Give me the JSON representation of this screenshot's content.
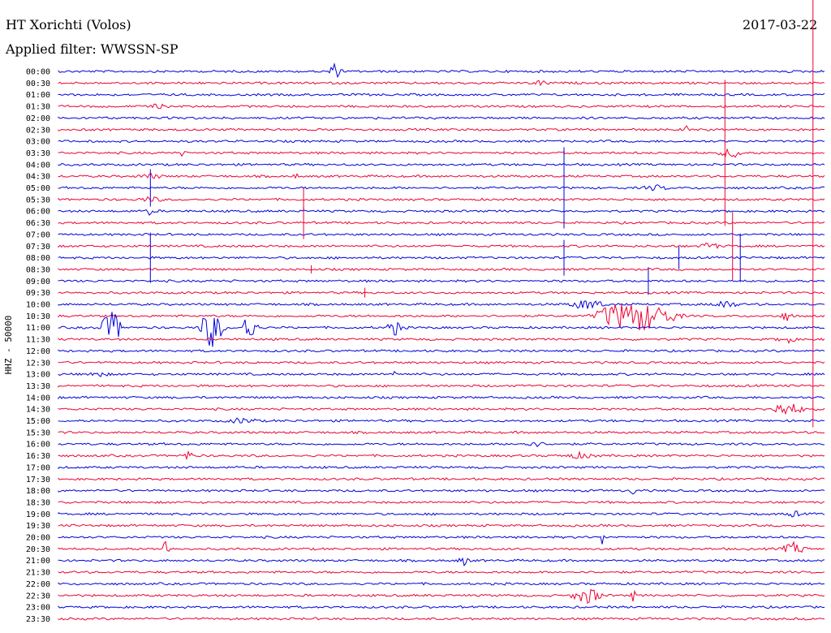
{
  "chart_data": {
    "type": "line",
    "title": "HT Xorichti (Volos)",
    "subtitle": "Applied filter: WWSSN-SP",
    "date": "2017-03-22",
    "ylabel": "HHZ - 50000",
    "row_labels": [
      "00:00",
      "00:30",
      "01:00",
      "01:30",
      "02:00",
      "02:30",
      "03:00",
      "03:30",
      "04:00",
      "04:30",
      "05:00",
      "05:30",
      "06:00",
      "06:30",
      "07:00",
      "07:30",
      "08:00",
      "08:30",
      "09:00",
      "09:30",
      "10:00",
      "10:30",
      "11:00",
      "11:30",
      "12:00",
      "12:30",
      "13:00",
      "13:30",
      "14:00",
      "14:30",
      "15:00",
      "15:30",
      "16:00",
      "16:30",
      "17:00",
      "17:30",
      "18:00",
      "18:30",
      "19:00",
      "19:30",
      "20:00",
      "20:30",
      "21:00",
      "21:30",
      "22:00",
      "22:30",
      "23:00",
      "23:30"
    ],
    "series_colors": [
      "#0000dd",
      "#ee0033"
    ],
    "grid": false,
    "x_range_fraction": [
      0,
      1
    ],
    "events": [
      {
        "row": 0,
        "pos": 0.36,
        "amp": 9,
        "dur": 0.012
      },
      {
        "row": 1,
        "pos": 0.63,
        "amp": 3,
        "dur": 0.015
      },
      {
        "row": 3,
        "pos": 0.13,
        "amp": 2,
        "dur": 0.02
      },
      {
        "row": 4,
        "pos": 0.27,
        "amp": 6,
        "dur": 0.003
      },
      {
        "row": 5,
        "pos": 0.82,
        "amp": 6,
        "dur": 0.004
      },
      {
        "row": 7,
        "pos": 0.16,
        "amp": 4,
        "dur": 0.006
      },
      {
        "row": 7,
        "pos": 0.88,
        "amp": 6,
        "dur": 0.02
      },
      {
        "row": 9,
        "pos": 0.12,
        "amp": 3,
        "dur": 0.02
      },
      {
        "row": 9,
        "pos": 0.31,
        "amp": 3,
        "dur": 0.004
      },
      {
        "row": 10,
        "pos": 0.78,
        "amp": 3,
        "dur": 0.02
      },
      {
        "row": 11,
        "pos": 0.12,
        "amp": 3,
        "dur": 0.02
      },
      {
        "row": 12,
        "pos": 0.12,
        "amp": 8,
        "dur": 0.006
      },
      {
        "row": 15,
        "pos": 0.85,
        "amp": 5,
        "dur": 0.015
      },
      {
        "row": 20,
        "pos": 0.69,
        "amp": 6,
        "dur": 0.03
      },
      {
        "row": 20,
        "pos": 0.87,
        "amp": 5,
        "dur": 0.02
      },
      {
        "row": 21,
        "pos": 0.72,
        "amp": 8,
        "dur": 0.03
      },
      {
        "row": 21,
        "pos": 0.76,
        "amp": 18,
        "dur": 0.06
      },
      {
        "row": 21,
        "pos": 0.95,
        "amp": 6,
        "dur": 0.01
      },
      {
        "row": 22,
        "pos": 0.07,
        "amp": 20,
        "dur": 0.02
      },
      {
        "row": 22,
        "pos": 0.2,
        "amp": 26,
        "dur": 0.02
      },
      {
        "row": 22,
        "pos": 0.25,
        "amp": 22,
        "dur": 0.012
      },
      {
        "row": 22,
        "pos": 0.44,
        "amp": 9,
        "dur": 0.015
      },
      {
        "row": 23,
        "pos": 0.95,
        "amp": 5,
        "dur": 0.015
      },
      {
        "row": 26,
        "pos": 0.05,
        "amp": 3,
        "dur": 0.02
      },
      {
        "row": 26,
        "pos": 0.44,
        "amp": 8,
        "dur": 0.004
      },
      {
        "row": 29,
        "pos": 0.95,
        "amp": 8,
        "dur": 0.03
      },
      {
        "row": 30,
        "pos": 0.24,
        "amp": 3,
        "dur": 0.025
      },
      {
        "row": 32,
        "pos": 0.62,
        "amp": 3,
        "dur": 0.02
      },
      {
        "row": 33,
        "pos": 0.17,
        "amp": 9,
        "dur": 0.006
      },
      {
        "row": 33,
        "pos": 0.68,
        "amp": 3,
        "dur": 0.03
      },
      {
        "row": 36,
        "pos": 0.75,
        "amp": 6,
        "dur": 0.004
      },
      {
        "row": 38,
        "pos": 0.96,
        "amp": 4,
        "dur": 0.01
      },
      {
        "row": 40,
        "pos": 0.71,
        "amp": 9,
        "dur": 0.004
      },
      {
        "row": 41,
        "pos": 0.14,
        "amp": 15,
        "dur": 0.006
      },
      {
        "row": 41,
        "pos": 0.96,
        "amp": 7,
        "dur": 0.02
      },
      {
        "row": 42,
        "pos": 0.53,
        "amp": 5,
        "dur": 0.01
      },
      {
        "row": 45,
        "pos": 0.69,
        "amp": 10,
        "dur": 0.025
      },
      {
        "row": 45,
        "pos": 0.75,
        "amp": 9,
        "dur": 0.004
      }
    ],
    "spikes": [
      {
        "row": 10,
        "pos": 0.12,
        "h": 46
      },
      {
        "row": 16,
        "pos": 0.12,
        "h": 62
      },
      {
        "row": 11,
        "pos": 0.32,
        "h": 30
      },
      {
        "row": 13,
        "pos": 0.32,
        "h": 40
      },
      {
        "row": 10,
        "pos": 0.66,
        "h": 100
      },
      {
        "row": 16,
        "pos": 0.66,
        "h": 44
      },
      {
        "row": 7,
        "pos": 0.87,
        "h": 180
      },
      {
        "row": 15,
        "pos": 0.88,
        "h": 84
      },
      {
        "row": 16,
        "pos": 0.89,
        "h": 60
      },
      {
        "row": 19,
        "pos": 0.4,
        "h": 12
      },
      {
        "row": 17,
        "pos": 0.33,
        "h": 10
      },
      {
        "row": 16,
        "pos": 0.81,
        "h": 28
      },
      {
        "row": 18,
        "pos": 0.77,
        "h": 34
      }
    ],
    "long_trace": {
      "row_start": 0,
      "row_end": 30,
      "pos": 0.985
    }
  }
}
